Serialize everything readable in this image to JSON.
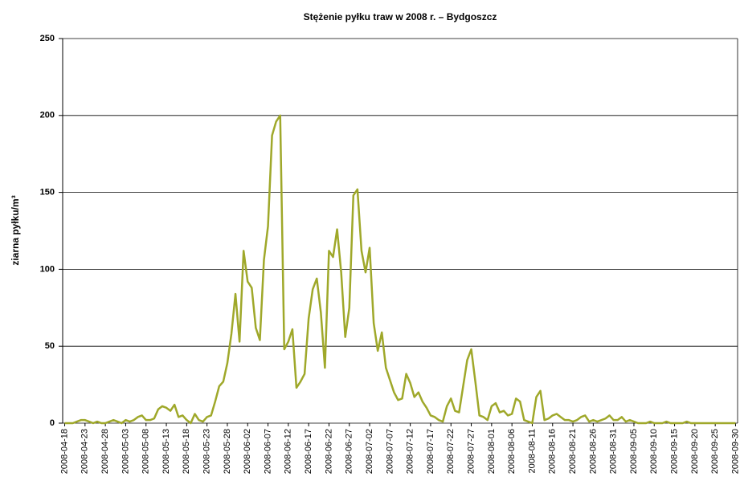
{
  "chart_data": {
    "type": "line",
    "title": "Stężenie pyłku traw w 2008 r. – Bydgoszcz",
    "ylabel": "ziarna pyłku/m³",
    "categories": [
      "2008-04-18",
      null,
      null,
      null,
      null,
      "2008-04-23",
      null,
      null,
      null,
      null,
      "2008-04-28",
      null,
      null,
      null,
      null,
      "2008-05-03",
      null,
      null,
      null,
      null,
      "2008-05-08",
      null,
      null,
      null,
      null,
      "2008-05-13",
      null,
      null,
      null,
      null,
      "2008-05-18",
      null,
      null,
      null,
      null,
      "2008-05-23",
      null,
      null,
      null,
      null,
      "2008-05-28",
      null,
      null,
      null,
      null,
      "2008-06-02",
      null,
      null,
      null,
      null,
      "2008-06-07",
      null,
      null,
      null,
      null,
      "2008-06-12",
      null,
      null,
      null,
      null,
      "2008-06-17",
      null,
      null,
      null,
      null,
      "2008-06-22",
      null,
      null,
      null,
      null,
      "2008-06-27",
      null,
      null,
      null,
      null,
      "2008-07-02",
      null,
      null,
      null,
      null,
      "2008-07-07",
      null,
      null,
      null,
      null,
      "2008-07-12",
      null,
      null,
      null,
      null,
      "2008-07-17",
      null,
      null,
      null,
      null,
      "2008-07-22",
      null,
      null,
      null,
      null,
      "2008-07-27",
      null,
      null,
      null,
      null,
      "2008-08-01",
      null,
      null,
      null,
      null,
      "2008-08-06",
      null,
      null,
      null,
      null,
      "2008-08-11",
      null,
      null,
      null,
      null,
      "2008-08-16",
      null,
      null,
      null,
      null,
      "2008-08-21",
      null,
      null,
      null,
      null,
      "2008-08-26",
      null,
      null,
      null,
      null,
      "2008-08-31",
      null,
      null,
      null,
      null,
      "2008-09-05",
      null,
      null,
      null,
      null,
      "2008-09-10",
      null,
      null,
      null,
      null,
      "2008-09-15",
      null,
      null,
      null,
      null,
      "2008-09-20",
      null,
      null,
      null,
      null,
      "2008-09-25",
      null,
      null,
      null,
      null,
      "2008-09-30"
    ],
    "series": [
      {
        "color": "#9fa82a",
        "values": [
          0,
          0,
          0,
          1,
          2,
          2,
          1,
          0,
          1,
          0,
          0,
          1,
          2,
          1,
          0,
          2,
          1,
          2,
          4,
          5,
          2,
          2,
          3,
          9,
          11,
          10,
          8,
          12,
          4,
          5,
          2,
          0,
          6,
          2,
          1,
          4,
          5,
          14,
          24,
          27,
          39,
          58,
          84,
          53,
          112,
          92,
          88,
          62,
          54,
          106,
          128,
          187,
          196,
          200,
          48,
          53,
          61,
          23,
          27,
          32,
          68,
          87,
          94,
          72,
          36,
          112,
          108,
          126,
          98,
          56,
          75,
          148,
          152,
          112,
          98,
          114,
          65,
          47,
          59,
          36,
          28,
          20,
          15,
          16,
          32,
          26,
          17,
          20,
          14,
          10,
          5,
          4,
          2,
          1,
          11,
          16,
          8,
          7,
          24,
          41,
          48,
          27,
          5,
          4,
          2,
          11,
          13,
          7,
          8,
          5,
          6,
          16,
          14,
          2,
          1,
          0,
          17,
          21,
          2,
          3,
          5,
          6,
          4,
          2,
          2,
          1,
          2,
          4,
          5,
          1,
          2,
          1,
          2,
          3,
          5,
          2,
          2,
          4,
          1,
          2,
          1,
          0,
          0,
          0,
          1,
          0,
          0,
          0,
          1,
          0,
          0,
          0,
          0,
          1,
          0,
          0,
          0,
          0,
          0,
          0,
          0,
          0,
          0,
          0,
          0,
          0
        ]
      }
    ],
    "ylim": [
      0,
      250
    ],
    "yticks": [
      0,
      50,
      100,
      150,
      200,
      250
    ],
    "grid": true
  }
}
